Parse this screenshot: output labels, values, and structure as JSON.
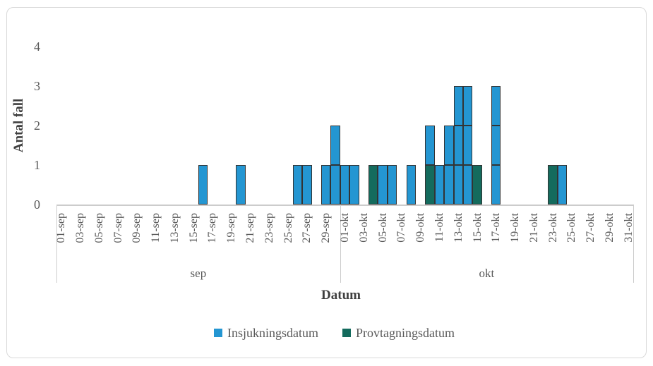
{
  "figure": {
    "background": "#ffffff",
    "border_color": "#d9d9d9"
  },
  "colors": {
    "bar_border": "#333333",
    "axis_line": "#cccccc",
    "tick_text": "#595959",
    "title_text": "#3f3f3f"
  },
  "chart_data": {
    "type": "bar",
    "stacked": true,
    "title": "",
    "xlabel": "Datum",
    "ylabel": "Antal fall",
    "ylim": [
      0,
      4
    ],
    "yticks": [
      0,
      1,
      2,
      3,
      4
    ],
    "gridlines": false,
    "legend_position": "bottom",
    "x_axis": {
      "months": [
        {
          "label": "sep",
          "num_days": 30
        },
        {
          "label": "okt",
          "num_days": 31
        }
      ],
      "tick_labels": [
        "01-sep",
        "03-sep",
        "05-sep",
        "07-sep",
        "09-sep",
        "11-sep",
        "13-sep",
        "15-sep",
        "17-sep",
        "19-sep",
        "21-sep",
        "23-sep",
        "25-sep",
        "27-sep",
        "29-sep",
        "01-okt",
        "03-okt",
        "05-okt",
        "07-okt",
        "09-okt",
        "11-okt",
        "13-okt",
        "15-okt",
        "17-okt",
        "19-okt",
        "21-okt",
        "23-okt",
        "25-okt",
        "27-okt",
        "29-okt",
        "31-okt"
      ]
    },
    "series": [
      {
        "name": "Insjukningsdatum",
        "color": "#2496D2"
      },
      {
        "name": "Provtagningsdatum",
        "color": "#146B5D"
      }
    ],
    "columns": [
      {
        "date": "16-sep",
        "segments": [
          {
            "series": "Insjukningsdatum",
            "value": 1
          }
        ]
      },
      {
        "date": "20-sep",
        "segments": [
          {
            "series": "Insjukningsdatum",
            "value": 1
          }
        ]
      },
      {
        "date": "26-sep",
        "segments": [
          {
            "series": "Insjukningsdatum",
            "value": 1
          }
        ]
      },
      {
        "date": "27-sep",
        "segments": [
          {
            "series": "Insjukningsdatum",
            "value": 1
          }
        ]
      },
      {
        "date": "29-sep",
        "segments": [
          {
            "series": "Insjukningsdatum",
            "value": 1
          }
        ]
      },
      {
        "date": "30-sep",
        "segments": [
          {
            "series": "Insjukningsdatum",
            "value": 2
          }
        ]
      },
      {
        "date": "01-okt",
        "segments": [
          {
            "series": "Insjukningsdatum",
            "value": 1
          }
        ]
      },
      {
        "date": "02-okt",
        "segments": [
          {
            "series": "Insjukningsdatum",
            "value": 1
          }
        ]
      },
      {
        "date": "04-okt",
        "segments": [
          {
            "series": "Provtagningsdatum",
            "value": 1
          }
        ]
      },
      {
        "date": "05-okt",
        "segments": [
          {
            "series": "Insjukningsdatum",
            "value": 1
          }
        ]
      },
      {
        "date": "06-okt",
        "segments": [
          {
            "series": "Insjukningsdatum",
            "value": 1
          }
        ]
      },
      {
        "date": "08-okt",
        "segments": [
          {
            "series": "Insjukningsdatum",
            "value": 1
          }
        ]
      },
      {
        "date": "10-okt",
        "segments": [
          {
            "series": "Provtagningsdatum",
            "value": 1
          },
          {
            "series": "Insjukningsdatum",
            "value": 1
          }
        ]
      },
      {
        "date": "11-okt",
        "segments": [
          {
            "series": "Insjukningsdatum",
            "value": 1
          }
        ]
      },
      {
        "date": "12-okt",
        "segments": [
          {
            "series": "Insjukningsdatum",
            "value": 2
          }
        ]
      },
      {
        "date": "13-okt",
        "segments": [
          {
            "series": "Insjukningsdatum",
            "value": 3
          }
        ]
      },
      {
        "date": "14-okt",
        "segments": [
          {
            "series": "Insjukningsdatum",
            "value": 3
          }
        ]
      },
      {
        "date": "15-okt",
        "segments": [
          {
            "series": "Provtagningsdatum",
            "value": 1
          }
        ]
      },
      {
        "date": "17-okt",
        "segments": [
          {
            "series": "Insjukningsdatum",
            "value": 3
          }
        ]
      },
      {
        "date": "23-okt",
        "segments": [
          {
            "series": "Provtagningsdatum",
            "value": 1
          }
        ]
      },
      {
        "date": "24-okt",
        "segments": [
          {
            "series": "Insjukningsdatum",
            "value": 1
          }
        ]
      }
    ]
  }
}
